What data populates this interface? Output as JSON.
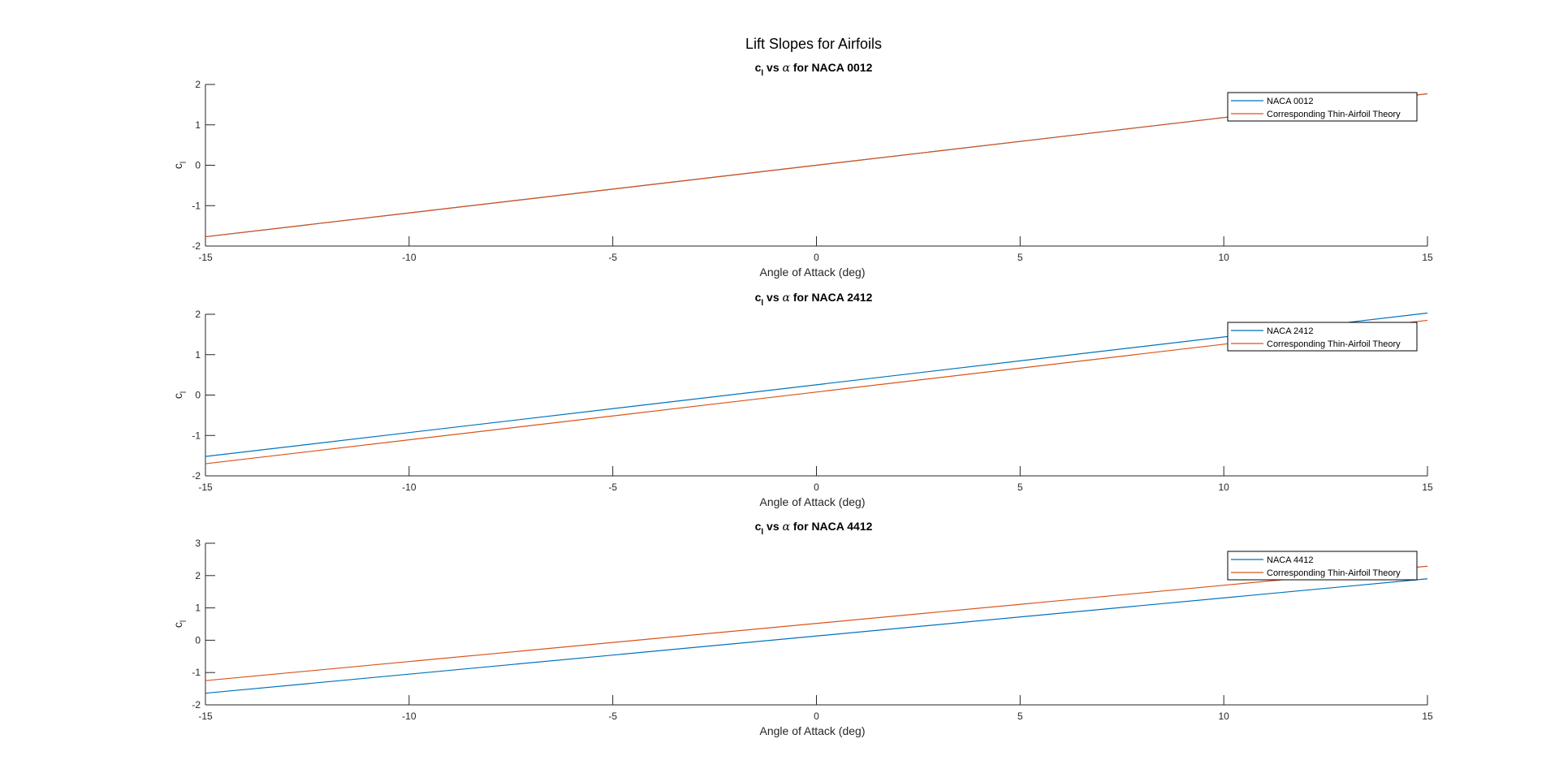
{
  "figure_title": "Lift Slopes for Airfoils",
  "colors": {
    "series1": "#0072BD",
    "series2": "#D95319",
    "axis": "#262626"
  },
  "chart_data": [
    {
      "type": "line",
      "title_parts": [
        "c",
        "l",
        " vs ",
        "α",
        " for NACA 0012"
      ],
      "xlabel": "Angle of Attack (deg)",
      "ylabel_parts": [
        "c",
        "l"
      ],
      "xlim": [
        -15,
        15
      ],
      "ylim": [
        -2,
        2
      ],
      "xticks": [
        "-15",
        "-10",
        "-5",
        "0",
        "5",
        "10",
        "15"
      ],
      "yticks": [
        "-2",
        "-1",
        "0",
        "1",
        "2"
      ],
      "legend": "top-right",
      "series": [
        {
          "name": "NACA 0012",
          "x": [
            -15,
            15
          ],
          "y": [
            -1.77,
            1.77
          ]
        },
        {
          "name": "Corresponding Thin-Airfoil Theory",
          "x": [
            -15,
            15
          ],
          "y": [
            -1.77,
            1.77
          ]
        }
      ]
    },
    {
      "type": "line",
      "title_parts": [
        "c",
        "l",
        " vs ",
        "α",
        " for NACA 2412"
      ],
      "xlabel": "Angle of Attack (deg)",
      "ylabel_parts": [
        "c",
        "l"
      ],
      "xlim": [
        -15,
        15
      ],
      "ylim": [
        -2,
        2
      ],
      "xticks": [
        "-15",
        "-10",
        "-5",
        "0",
        "5",
        "10",
        "15"
      ],
      "yticks": [
        "-2",
        "-1",
        "0",
        "1",
        "2"
      ],
      "legend": "top-right",
      "series": [
        {
          "name": "NACA 2412",
          "x": [
            -15,
            15
          ],
          "y": [
            -1.52,
            2.03
          ]
        },
        {
          "name": "Corresponding Thin-Airfoil Theory",
          "x": [
            -15,
            15
          ],
          "y": [
            -1.7,
            1.85
          ]
        }
      ]
    },
    {
      "type": "line",
      "title_parts": [
        "c",
        "l",
        " vs ",
        "α",
        " for NACA 4412"
      ],
      "xlabel": "Angle of Attack (deg)",
      "ylabel_parts": [
        "c",
        "l"
      ],
      "xlim": [
        -15,
        15
      ],
      "ylim": [
        -2,
        3
      ],
      "xticks": [
        "-15",
        "-10",
        "-5",
        "0",
        "5",
        "10",
        "15"
      ],
      "yticks": [
        "-2",
        "-1",
        "0",
        "1",
        "2",
        "3"
      ],
      "legend": "top-right",
      "series": [
        {
          "name": "NACA 4412",
          "x": [
            -15,
            15
          ],
          "y": [
            -1.64,
            1.9
          ]
        },
        {
          "name": "Corresponding Thin-Airfoil Theory",
          "x": [
            -15,
            15
          ],
          "y": [
            -1.25,
            2.29
          ]
        }
      ]
    }
  ]
}
